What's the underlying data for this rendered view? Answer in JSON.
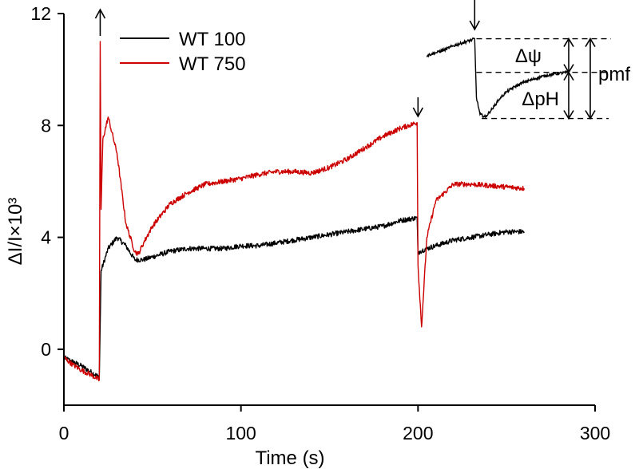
{
  "chart_data": {
    "type": "line",
    "title": "",
    "xlabel": "Time (s)",
    "ylabel": "ΔI/I×10³",
    "xlim": [
      0,
      300
    ],
    "ylim": [
      -2,
      12
    ],
    "xticks": [
      0,
      100,
      200,
      300
    ],
    "xtick_labels": [
      "0",
      "100",
      "200",
      "300"
    ],
    "yticks": [
      0,
      4,
      8,
      12
    ],
    "ytick_labels": [
      "0",
      "4",
      "8",
      "12"
    ],
    "grid": false,
    "legend_position": "top-left",
    "series": [
      {
        "name": "WT 100",
        "color": "#000000",
        "x": [
          0,
          5,
          10,
          15,
          20,
          21,
          25,
          30,
          35,
          40,
          45,
          50,
          60,
          70,
          80,
          90,
          100,
          110,
          120,
          130,
          140,
          150,
          160,
          170,
          180,
          190,
          199.5,
          200,
          201,
          205,
          210,
          220,
          230,
          240,
          250,
          260
        ],
        "y": [
          -0.3,
          -0.45,
          -0.6,
          -0.8,
          -1.0,
          2.8,
          3.6,
          4.0,
          3.7,
          3.2,
          3.2,
          3.3,
          3.5,
          3.6,
          3.6,
          3.6,
          3.7,
          3.7,
          3.8,
          3.9,
          4.0,
          4.1,
          4.2,
          4.3,
          4.4,
          4.6,
          4.7,
          3.4,
          3.5,
          3.6,
          3.7,
          3.9,
          4.0,
          4.1,
          4.2,
          4.2
        ]
      },
      {
        "name": "WT 750",
        "color": "#cc0000",
        "x": [
          0,
          5,
          10,
          15,
          20,
          20.5,
          21,
          22,
          25,
          30,
          35,
          40,
          42,
          45,
          50,
          60,
          70,
          80,
          90,
          100,
          110,
          120,
          130,
          140,
          150,
          160,
          170,
          180,
          190,
          199.5,
          200,
          202,
          205,
          210,
          220,
          230,
          240,
          250,
          260
        ],
        "y": [
          -0.3,
          -0.55,
          -0.75,
          -0.9,
          -1.1,
          11.0,
          5.0,
          7.5,
          8.3,
          7.0,
          4.5,
          3.5,
          3.4,
          3.8,
          4.4,
          5.2,
          5.6,
          5.9,
          6.0,
          6.1,
          6.25,
          6.35,
          6.35,
          6.3,
          6.5,
          6.8,
          7.2,
          7.6,
          7.9,
          8.1,
          3.0,
          0.8,
          4.0,
          5.3,
          5.9,
          5.9,
          5.85,
          5.8,
          5.75
        ]
      }
    ],
    "annotations": {
      "arrows": [
        {
          "x": 20,
          "direction": "up"
        },
        {
          "x": 200,
          "direction": "down"
        },
        {
          "x": 232,
          "direction": "down"
        }
      ],
      "labels": [
        "Δψ",
        "ΔpH",
        "pmf"
      ],
      "inset_trace": {
        "x": [
          205,
          210,
          215,
          220,
          225,
          230,
          232,
          233,
          235,
          238,
          242,
          246,
          250,
          255,
          260,
          265,
          270,
          275,
          280,
          285
        ],
        "y": [
          10.5,
          10.6,
          10.7,
          10.85,
          10.95,
          11.05,
          11.1,
          9.0,
          8.4,
          8.3,
          8.6,
          8.95,
          9.2,
          9.4,
          9.55,
          9.65,
          9.75,
          9.82,
          9.87,
          9.9
        ]
      },
      "levels": {
        "top": 11.1,
        "middle": 9.9,
        "bottom": 8.25
      }
    }
  }
}
